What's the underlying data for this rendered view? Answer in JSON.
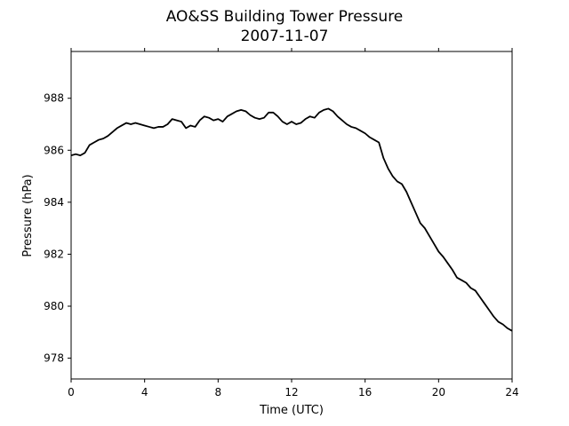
{
  "chart_data": {
    "type": "line",
    "title": "AO&SS Building Tower Pressure",
    "subtitle": "2007-11-07",
    "xlabel": "Time (UTC)",
    "ylabel": "Pressure (hPa)",
    "xlim": [
      0,
      24
    ],
    "ylim": [
      977.2,
      989.8
    ],
    "xticks": [
      "0",
      "4",
      "8",
      "12",
      "16",
      "20",
      "24"
    ],
    "yticks": [
      "978",
      "980",
      "982",
      "984",
      "986",
      "988"
    ],
    "grid": false,
    "legend": "none",
    "line_color": "#000000",
    "series": [
      {
        "x": [
          0,
          0.25,
          0.5,
          0.75,
          1,
          1.25,
          1.5,
          1.75,
          2,
          2.25,
          2.5,
          2.75,
          3,
          3.25,
          3.5,
          3.75,
          4,
          4.25,
          4.5,
          4.75,
          5,
          5.25,
          5.5,
          5.75,
          6,
          6.25,
          6.5,
          6.75,
          7,
          7.25,
          7.5,
          7.75,
          8,
          8.25,
          8.5,
          8.75,
          9,
          9.25,
          9.5,
          9.75,
          10,
          10.25,
          10.5,
          10.75,
          11,
          11.25,
          11.5,
          11.75,
          12,
          12.25,
          12.5,
          12.75,
          13,
          13.25,
          13.5,
          13.75,
          14,
          14.25,
          14.5,
          14.75,
          15,
          15.25,
          15.5,
          15.75,
          16,
          16.25,
          16.5,
          16.75,
          17,
          17.25,
          17.5,
          17.75,
          18,
          18.25,
          18.5,
          18.75,
          19,
          19.25,
          19.5,
          19.75,
          20,
          20.25,
          20.5,
          20.75,
          21,
          21.25,
          21.5,
          21.75,
          22,
          22.25,
          22.5,
          22.75,
          23,
          23.25,
          23.5,
          23.75,
          24
        ],
        "y": [
          985.8,
          985.85,
          985.8,
          985.9,
          986.2,
          986.3,
          986.4,
          986.45,
          986.55,
          986.7,
          986.85,
          986.95,
          987.05,
          987.0,
          987.05,
          987.0,
          986.95,
          986.9,
          986.85,
          986.9,
          986.9,
          987.0,
          987.2,
          987.15,
          987.1,
          986.85,
          986.95,
          986.9,
          987.15,
          987.3,
          987.25,
          987.15,
          987.2,
          987.1,
          987.3,
          987.4,
          987.5,
          987.55,
          987.5,
          987.35,
          987.25,
          987.2,
          987.25,
          987.45,
          987.45,
          987.3,
          987.1,
          987.0,
          987.1,
          987.0,
          987.05,
          987.2,
          987.3,
          987.25,
          987.45,
          987.55,
          987.6,
          987.5,
          987.3,
          987.15,
          987.0,
          986.9,
          986.85,
          986.75,
          986.65,
          986.5,
          986.4,
          986.3,
          985.7,
          985.3,
          985.0,
          984.8,
          984.7,
          984.4,
          984.0,
          983.6,
          983.2,
          983.0,
          982.7,
          982.4,
          982.1,
          981.9,
          981.65,
          981.4,
          981.1,
          981.0,
          980.9,
          980.7,
          980.6,
          980.35,
          980.1,
          979.85,
          979.6,
          979.4,
          979.3,
          979.15,
          979.05
        ]
      }
    ]
  }
}
